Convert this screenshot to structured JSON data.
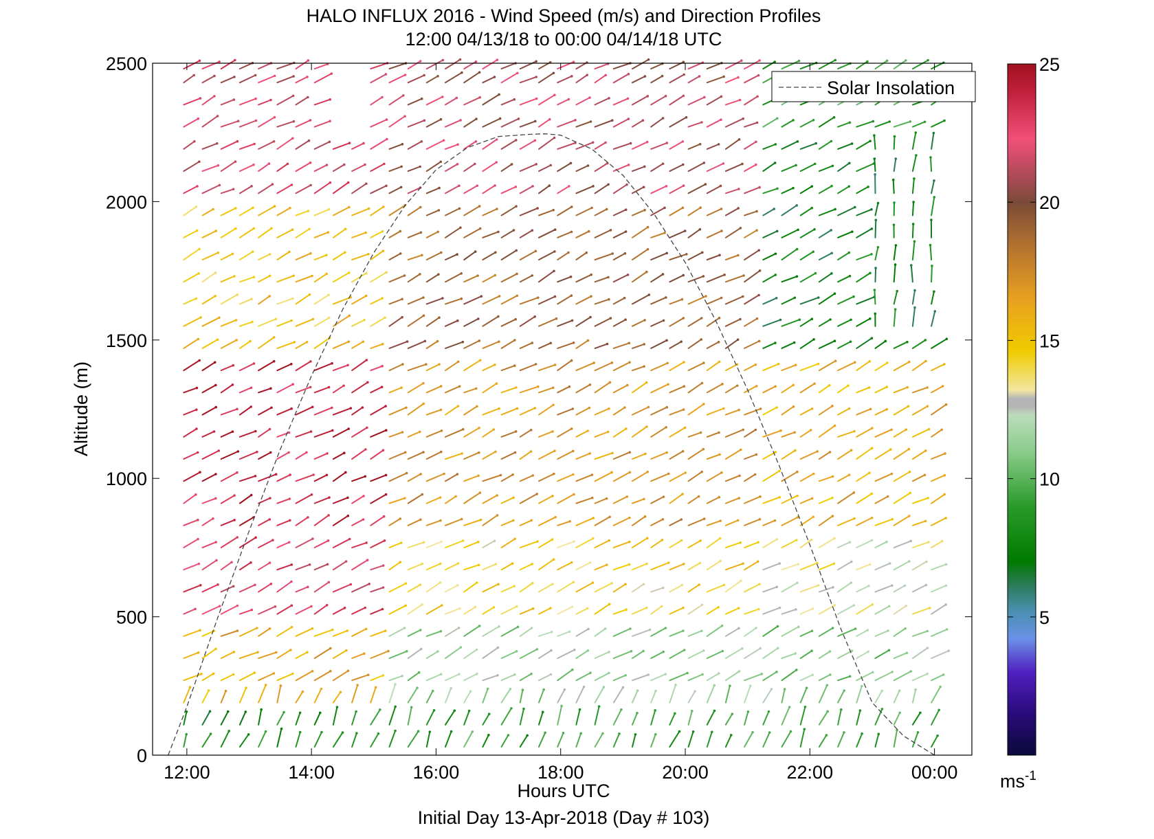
{
  "figure": {
    "title_line1": "HALO INFLUX 2016 - Wind Speed (m/s) and Direction Profiles",
    "title_line2": "12:00 04/13/18 to 00:00 04/14/18  UTC",
    "footer": "Initial Day 13-Apr-2018 (Day # 103)"
  },
  "chart_data": {
    "type": "quiver",
    "xlabel": "Hours UTC",
    "ylabel": "Altitude (m)",
    "xlim": [
      11.45,
      24.6
    ],
    "ylim": [
      0,
      2500
    ],
    "x_ticks": [
      12,
      14,
      16,
      18,
      20,
      22,
      24
    ],
    "x_tick_labels": [
      "12:00",
      "14:00",
      "16:00",
      "18:00",
      "20:00",
      "22:00",
      "00:00"
    ],
    "y_ticks": [
      0,
      500,
      1000,
      1500,
      2000,
      2500
    ],
    "y_tick_labels": [
      "0",
      "500",
      "1000",
      "1500",
      "2000",
      "2500"
    ],
    "grid": false,
    "legend": {
      "entries": [
        "Solar Insolation"
      ],
      "location": "top-right",
      "line_style": "dashed",
      "line_color": "#444444"
    },
    "colorbar": {
      "label": "ms-1",
      "unit_base": "ms",
      "unit_exp": "-1",
      "range": [
        0,
        25
      ],
      "ticks": [
        5,
        10,
        15,
        20,
        25
      ],
      "tick_labels": [
        "5",
        "10",
        "15",
        "20",
        "25"
      ],
      "stops": [
        {
          "v": 0,
          "c": "#0a0a3a"
        },
        {
          "v": 1.5,
          "c": "#2a0a7a"
        },
        {
          "v": 3,
          "c": "#5020c0"
        },
        {
          "v": 4.2,
          "c": "#6a90e8"
        },
        {
          "v": 5.2,
          "c": "#4a90b0"
        },
        {
          "v": 6.2,
          "c": "#2a7a55"
        },
        {
          "v": 7,
          "c": "#007a00"
        },
        {
          "v": 9,
          "c": "#2a9a2a"
        },
        {
          "v": 11,
          "c": "#8ccc8c"
        },
        {
          "v": 12.3,
          "c": "#bcdcbc"
        },
        {
          "v": 12.6,
          "c": "#b4b4b4"
        },
        {
          "v": 12.9,
          "c": "#b4b4b4"
        },
        {
          "v": 13.2,
          "c": "#f2e6a0"
        },
        {
          "v": 14.6,
          "c": "#f0cc00"
        },
        {
          "v": 16.5,
          "c": "#e8a020"
        },
        {
          "v": 18.5,
          "c": "#b07030"
        },
        {
          "v": 20,
          "c": "#7a4a38"
        },
        {
          "v": 21,
          "c": "#b04a5a"
        },
        {
          "v": 22.3,
          "c": "#f05078"
        },
        {
          "v": 24,
          "c": "#c0203a"
        },
        {
          "v": 25,
          "c": "#a01020"
        }
      ]
    },
    "solar_insolation": {
      "label": "Solar Insolation",
      "x": [
        11.7,
        12.0,
        12.5,
        13.0,
        13.5,
        14.0,
        14.5,
        15.0,
        15.5,
        16.0,
        16.5,
        17.0,
        17.5,
        17.75,
        18.0,
        18.5,
        19.0,
        19.5,
        20.0,
        20.5,
        21.0,
        21.5,
        22.0,
        22.5,
        23.0,
        23.5,
        24.0
      ],
      "y": [
        0,
        175,
        500,
        810,
        1105,
        1370,
        1610,
        1815,
        1985,
        2115,
        2195,
        2235,
        2243,
        2245,
        2240,
        2190,
        2095,
        1955,
        1780,
        1565,
        1320,
        1050,
        760,
        455,
        190,
        70,
        0
      ]
    },
    "wind_field": {
      "time_hours": [
        11.95,
        12.25,
        12.55,
        12.85,
        13.15,
        13.45,
        13.75,
        14.05,
        14.35,
        14.65,
        14.95,
        15.25,
        15.55,
        15.85,
        16.15,
        16.45,
        16.75,
        17.05,
        17.35,
        17.65,
        17.95,
        18.25,
        18.55,
        18.85,
        19.15,
        19.45,
        19.75,
        20.05,
        20.35,
        20.65,
        20.95,
        21.25,
        21.55,
        21.85,
        22.15,
        22.45,
        22.75,
        23.05,
        23.35,
        23.65,
        23.95
      ],
      "altitude_levels_m": [
        30,
        110,
        190,
        270,
        350,
        430,
        510,
        590,
        670,
        750,
        830,
        910,
        990,
        1070,
        1150,
        1230,
        1310,
        1390,
        1470,
        1550,
        1630,
        1710,
        1790,
        1870,
        1950,
        2030,
        2110,
        2190,
        2270,
        2350,
        2430,
        2480
      ],
      "speed_model": [
        {
          "alt_max": 150,
          "morning": 8,
          "afternoon": 9,
          "evening": 9
        },
        {
          "alt_max": 450,
          "morning": 16,
          "afternoon": 11.5,
          "evening": 11
        },
        {
          "alt_max": 800,
          "morning": 22.5,
          "afternoon": 14.5,
          "evening": 13
        },
        {
          "alt_max": 1400,
          "morning": 24,
          "afternoon": 17,
          "evening": 16
        },
        {
          "alt_max": 2000,
          "morning": 15,
          "afternoon": 19,
          "evening": 7
        },
        {
          "alt_max": 2500,
          "morning": 22,
          "afternoon": 21,
          "evening": 9
        }
      ],
      "direction": "arrows point mostly toward the east-northeast (south-westerly winds); low-level and late-evening arrows point north-east to north"
    }
  }
}
